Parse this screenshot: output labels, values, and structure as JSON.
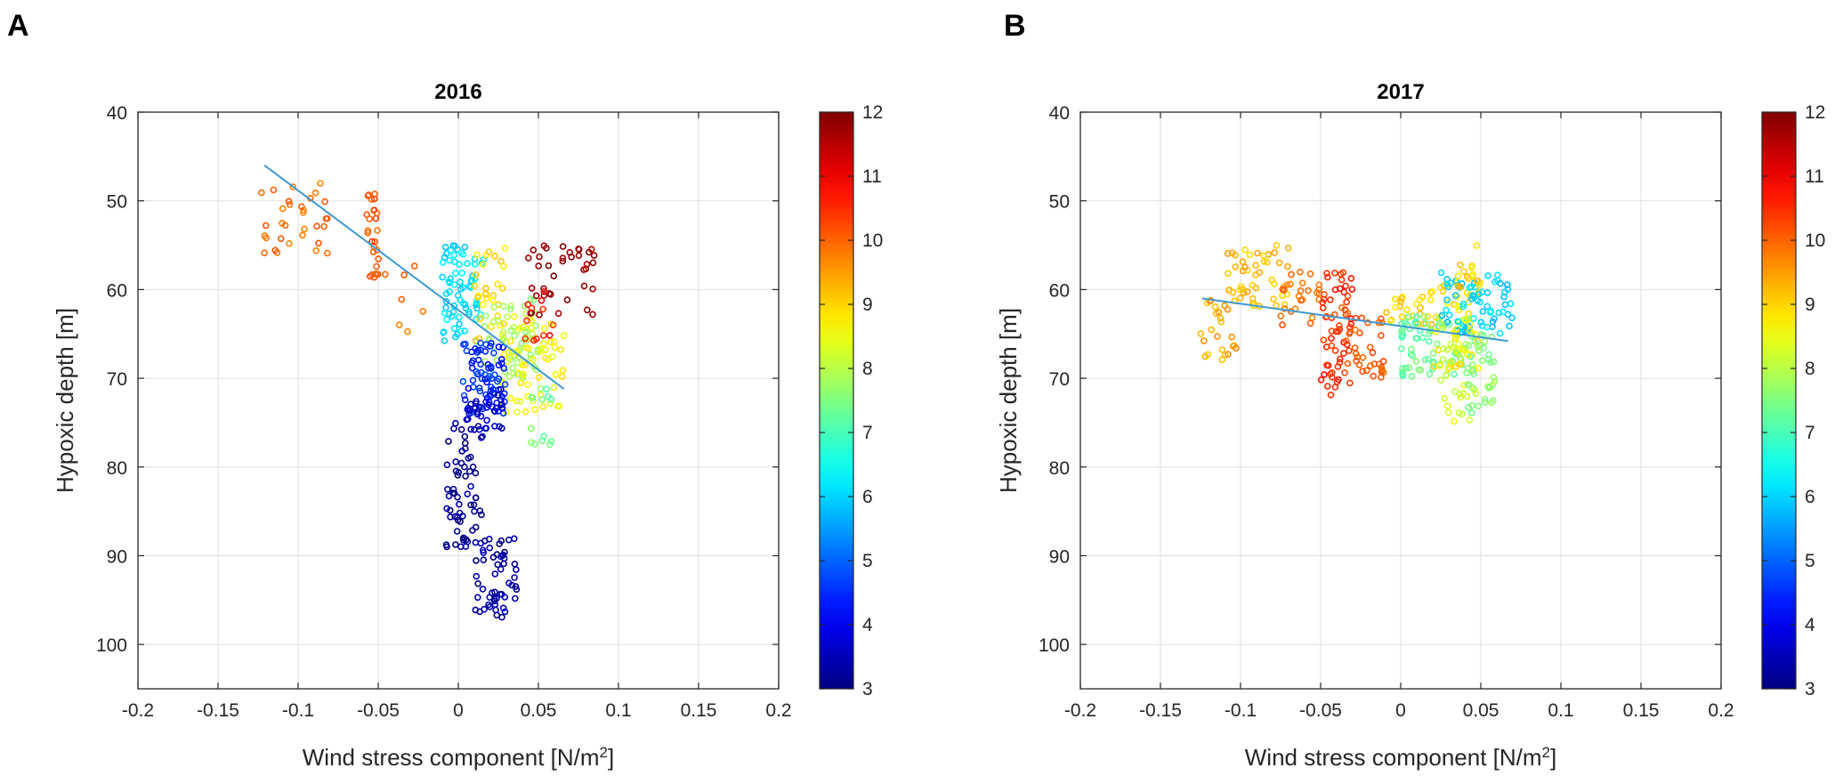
{
  "figure": {
    "panels": [
      {
        "letter": "A"
      },
      {
        "letter": "B"
      }
    ]
  },
  "chart_data": [
    {
      "type": "scatter",
      "panel": "A",
      "title": "2016",
      "xlabel": "Wind stress component [N/m",
      "xlabel_superscript": "2",
      "xlabel_suffix": "]",
      "ylabel": "Hypoxic depth [m]",
      "xlim": [
        -0.2,
        0.2
      ],
      "ylim": [
        40,
        105
      ],
      "y_reversed": true,
      "grid": true,
      "xticks": [
        -0.2,
        -0.15,
        -0.1,
        -0.05,
        0,
        0.05,
        0.1,
        0.15,
        0.2
      ],
      "xtick_labels": [
        "-0.2",
        "-0.15",
        "-0.1",
        "-0.05",
        "0",
        "0.05",
        "0.1",
        "0.15",
        "0.2"
      ],
      "yticks": [
        40,
        50,
        60,
        70,
        80,
        90,
        100
      ],
      "ytick_labels": [
        "40",
        "50",
        "60",
        "70",
        "80",
        "90",
        "100"
      ],
      "colorbar": {
        "range": [
          3,
          12
        ],
        "ticks": [
          3,
          4,
          5,
          6,
          7,
          8,
          9,
          10,
          11,
          12
        ],
        "tick_labels": [
          "3",
          "4",
          "5",
          "6",
          "7",
          "8",
          "9",
          "10",
          "11",
          "12"
        ],
        "colormap": "jet"
      },
      "fit_line": {
        "x": [
          -0.121,
          0.066
        ],
        "y": [
          46.0,
          71.2
        ],
        "color": "#3d9ad1"
      },
      "clusters": [
        {
          "c": 9.9,
          "x": [
            -0.125,
            -0.08
          ],
          "y": [
            48,
            56
          ],
          "n": 32
        },
        {
          "c": 10.1,
          "x": [
            -0.058,
            -0.05
          ],
          "y": [
            47,
            60
          ],
          "n": 26
        },
        {
          "c": 9.9,
          "x": [
            -0.05,
            -0.022
          ],
          "y": [
            56,
            66
          ],
          "n": 8
        },
        {
          "c": 6.1,
          "x": [
            -0.01,
            0.016
          ],
          "y": [
            55,
            66
          ],
          "n": 70
        },
        {
          "c": 8.9,
          "x": [
            0.01,
            0.03
          ],
          "y": [
            55,
            66
          ],
          "n": 30
        },
        {
          "c": 7.8,
          "x": [
            0.015,
            0.05
          ],
          "y": [
            61,
            70
          ],
          "n": 60
        },
        {
          "c": 8.6,
          "x": [
            0.025,
            0.066
          ],
          "y": [
            63,
            74
          ],
          "n": 60
        },
        {
          "c": 7.4,
          "x": [
            0.045,
            0.058
          ],
          "y": [
            71,
            78
          ],
          "n": 14
        },
        {
          "c": 11.8,
          "x": [
            0.04,
            0.087
          ],
          "y": [
            55,
            63
          ],
          "n": 38
        },
        {
          "c": 10.6,
          "x": [
            0.04,
            0.06
          ],
          "y": [
            59,
            66
          ],
          "n": 12
        },
        {
          "c": 4.5,
          "x": [
            0.003,
            0.03
          ],
          "y": [
            66,
            74
          ],
          "n": 80
        },
        {
          "c": 3.6,
          "x": [
            0.005,
            0.028
          ],
          "y": [
            71,
            76
          ],
          "n": 30
        },
        {
          "c": 3.2,
          "x": [
            -0.008,
            0.016
          ],
          "y": [
            75,
            89
          ],
          "n": 65
        },
        {
          "c": 3.3,
          "x": [
            0.01,
            0.038
          ],
          "y": [
            88,
            97
          ],
          "n": 55
        }
      ]
    },
    {
      "type": "scatter",
      "panel": "B",
      "title": "2017",
      "xlabel": "Wind stress component [N/m",
      "xlabel_superscript": "2",
      "xlabel_suffix": "]",
      "ylabel": "Hypoxic depth [m]",
      "xlim": [
        -0.2,
        0.2
      ],
      "ylim": [
        40,
        105
      ],
      "y_reversed": true,
      "grid": true,
      "xticks": [
        -0.2,
        -0.15,
        -0.1,
        -0.05,
        0,
        0.05,
        0.1,
        0.15,
        0.2
      ],
      "xtick_labels": [
        "-0.2",
        "-0.15",
        "-0.1",
        "-0.05",
        "0",
        "0.05",
        "0.1",
        "0.15",
        "0.2"
      ],
      "yticks": [
        40,
        50,
        60,
        70,
        80,
        90,
        100
      ],
      "ytick_labels": [
        "40",
        "50",
        "60",
        "70",
        "80",
        "90",
        "100"
      ],
      "colorbar": {
        "range": [
          3,
          12
        ],
        "ticks": [
          3,
          4,
          5,
          6,
          7,
          8,
          9,
          10,
          11,
          12
        ],
        "tick_labels": [
          "3",
          "4",
          "5",
          "6",
          "7",
          "8",
          "9",
          "10",
          "11",
          "12"
        ],
        "colormap": "jet"
      },
      "fit_line": {
        "x": [
          -0.124,
          0.067
        ],
        "y": [
          61.0,
          65.8
        ],
        "color": "#3d9ad1"
      },
      "clusters": [
        {
          "c": 9.4,
          "x": [
            -0.125,
            -0.1
          ],
          "y": [
            60,
            68
          ],
          "n": 28
        },
        {
          "c": 9.2,
          "x": [
            -0.11,
            -0.07
          ],
          "y": [
            55,
            62
          ],
          "n": 45
        },
        {
          "c": 10.0,
          "x": [
            -0.075,
            -0.05
          ],
          "y": [
            58,
            64
          ],
          "n": 25
        },
        {
          "c": 10.5,
          "x": [
            -0.05,
            -0.03
          ],
          "y": [
            58,
            72
          ],
          "n": 55
        },
        {
          "c": 10.1,
          "x": [
            -0.04,
            -0.01
          ],
          "y": [
            62,
            70
          ],
          "n": 40
        },
        {
          "c": 9.0,
          "x": [
            -0.01,
            0.02
          ],
          "y": [
            60,
            64
          ],
          "n": 25
        },
        {
          "c": 7.3,
          "x": [
            0.0,
            0.04
          ],
          "y": [
            63,
            70
          ],
          "n": 70
        },
        {
          "c": 8.8,
          "x": [
            0.02,
            0.05
          ],
          "y": [
            59,
            69
          ],
          "n": 45
        },
        {
          "c": 6.0,
          "x": [
            0.025,
            0.07
          ],
          "y": [
            58,
            65
          ],
          "n": 65
        },
        {
          "c": 8.3,
          "x": [
            0.025,
            0.05
          ],
          "y": [
            63,
            75
          ],
          "n": 40
        },
        {
          "c": 7.6,
          "x": [
            0.04,
            0.06
          ],
          "y": [
            65,
            74
          ],
          "n": 40
        },
        {
          "c": 9.1,
          "x": [
            0.035,
            0.05
          ],
          "y": [
            55,
            60
          ],
          "n": 15
        }
      ]
    }
  ]
}
